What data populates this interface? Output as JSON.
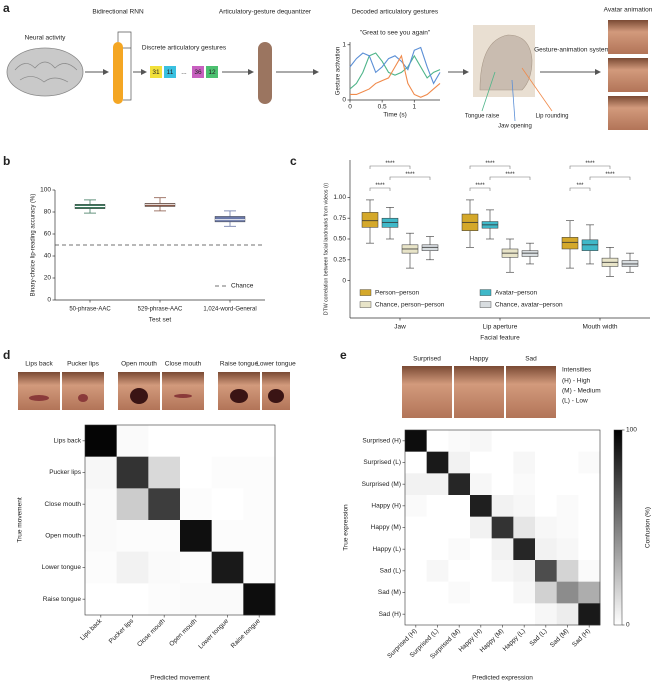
{
  "figure": {
    "panel_letters": [
      "a",
      "b",
      "c",
      "d",
      "e"
    ]
  },
  "panel_a": {
    "neural_activity": "Neural activity",
    "rnn": "Bidirectional RNN",
    "gestures": "Discrete articulatory gestures",
    "tokens": [
      "31",
      "11",
      "...",
      "36",
      "12"
    ],
    "dequantizer": "Articulatory-gesture dequantizer",
    "decoded": "Decoded articulatory gestures",
    "animation_system": "Gesture-animation system",
    "avatar": "Avatar animation"
  },
  "chart_data": [
    {
      "type": "line",
      "title": "\"Great to see you again\"",
      "xlabel": "Time (s)",
      "ylabel": "Gesture activation",
      "x": [
        0,
        0.1,
        0.2,
        0.3,
        0.4,
        0.5,
        0.6,
        0.7,
        0.8,
        0.9,
        1,
        1.1,
        1.2,
        1.3,
        1.4
      ],
      "xlim": [
        0,
        1.4
      ],
      "xticks": [
        0,
        0.5,
        1
      ],
      "ylim": [
        0,
        1.05
      ],
      "yticks": [
        0,
        1
      ],
      "series": [
        {
          "name": "Tongue raise",
          "color": "#4fb58a",
          "values": [
            0.2,
            0.3,
            0.5,
            0.8,
            0.85,
            0.7,
            0.5,
            0.45,
            0.5,
            0.6,
            0.8,
            0.6,
            0.4,
            0.5,
            0.55
          ]
        },
        {
          "name": "Jaw opening",
          "color": "#5b8fd6",
          "values": [
            0.6,
            0.75,
            0.85,
            0.8,
            0.5,
            0.6,
            0.75,
            0.8,
            0.7,
            0.55,
            0.9,
            0.95,
            0.6,
            0.3,
            0.5
          ]
        },
        {
          "name": "Lip rounding",
          "color": "#f08a4b",
          "values": [
            0.1,
            0.1,
            0.15,
            0.2,
            0.3,
            0.35,
            0.4,
            0.6,
            0.8,
            0.3,
            0.1,
            0.05,
            0.1,
            0.2,
            0.3
          ]
        }
      ]
    },
    {
      "type": "box",
      "xlabel": "Test set",
      "ylabel": "Binary-choice lip-reading accuracy (%)",
      "categories": [
        "50-phrase-AAC",
        "529-phrase-AAC",
        "1,024-word-General"
      ],
      "colors": [
        "#3f7a5f",
        "#8b5a4a",
        "#6a78a8"
      ],
      "values": [
        [
          79,
          83,
          85,
          87,
          91
        ],
        [
          81,
          85,
          87,
          88,
          93
        ],
        [
          67,
          71,
          73,
          76,
          81
        ]
      ],
      "ylim": [
        0,
        100
      ],
      "yticks": [
        0,
        20,
        40,
        60,
        80,
        100
      ],
      "chance": {
        "value": 50,
        "label": "Chance"
      }
    },
    {
      "type": "grouped_box",
      "xlabel": "Facial feature",
      "ylabel": "DTW correlation between facial landmarks from videos (r)",
      "categories": [
        "Jaw",
        "Lip aperture",
        "Mouth width"
      ],
      "ylim": [
        -0.45,
        1.45
      ],
      "yticks": [
        0,
        0.25,
        {
          "value": 0.5,
          "label": "0.50"
        },
        0.75,
        {
          "value": 1,
          "label": "1.00"
        }
      ],
      "series": [
        {
          "name": "Person–person",
          "color": "#d4a82a",
          "values": [
            [
              0.45,
              0.64,
              0.72,
              0.82,
              0.97
            ],
            [
              0.4,
              0.6,
              0.7,
              0.8,
              0.97
            ],
            [
              0.15,
              0.38,
              0.46,
              0.52,
              0.72
            ]
          ]
        },
        {
          "name": "Avatar–person",
          "color": "#3fb8c8",
          "values": [
            [
              0.5,
              0.64,
              0.7,
              0.75,
              0.88
            ],
            [
              0.5,
              0.63,
              0.67,
              0.71,
              0.85
            ],
            [
              0.2,
              0.36,
              0.43,
              0.49,
              0.67
            ]
          ]
        },
        {
          "name": "Chance, person–person",
          "color": "#e8e4c8",
          "values": [
            [
              0.15,
              0.33,
              0.38,
              0.43,
              0.57
            ],
            [
              0.1,
              0.28,
              0.33,
              0.38,
              0.5
            ],
            [
              0.05,
              0.17,
              0.22,
              0.27,
              0.4
            ]
          ]
        },
        {
          "name": "Chance, avatar–person",
          "color": "#d8dde0",
          "values": [
            [
              0.25,
              0.36,
              0.4,
              0.43,
              0.53
            ],
            [
              0.2,
              0.29,
              0.33,
              0.36,
              0.45
            ],
            [
              0.1,
              0.17,
              0.2,
              0.24,
              0.33
            ]
          ]
        }
      ],
      "significance": [
        [
          "****",
          "****",
          "****"
        ],
        [
          "****",
          "****",
          "****"
        ],
        [
          "****",
          "****",
          "***"
        ]
      ]
    },
    {
      "type": "heatmap",
      "xlabel": "Predicted movement",
      "ylabel": "True movement",
      "image_labels": [
        "Lips back",
        "Pucker lips",
        "Open mouth",
        "Close mouth",
        "Raise tongue",
        "Lower tongue"
      ],
      "categories": [
        "Lips back",
        "Pucker lips",
        "Close mouth",
        "Open mouth",
        "Lower tongue",
        "Raise tongue"
      ],
      "y_categories": [
        "Lips back",
        "Pucker lips",
        "Close mouth",
        "Open mouth",
        "Lower tongue",
        "Raise tongue"
      ],
      "zlim": [
        0,
        100
      ],
      "values": [
        [
          98,
          2,
          0,
          0,
          0,
          0
        ],
        [
          3,
          80,
          15,
          0,
          1,
          1
        ],
        [
          2,
          20,
          76,
          1,
          0,
          1
        ],
        [
          2,
          1,
          1,
          94,
          1,
          1
        ],
        [
          1,
          5,
          2,
          1,
          90,
          1
        ],
        [
          0,
          0,
          1,
          2,
          2,
          95
        ]
      ]
    },
    {
      "type": "heatmap",
      "xlabel": "Predicted expression",
      "ylabel": "True expression",
      "image_labels": [
        "Surprised",
        "Happy",
        "Sad"
      ],
      "legend_title": "Intensities",
      "legend_entries": [
        "(H) - High",
        "(M) - Medium",
        "(L) - Low"
      ],
      "categories": [
        "Surprised (H)",
        "Surprised (L)",
        "Surprised (M)",
        "Happy (H)",
        "Happy (M)",
        "Happy (L)",
        "Sad (L)",
        "Sad (M)",
        "Sad (H)"
      ],
      "y_categories": [
        "Surprised (H)",
        "Surprised (L)",
        "Surprised (M)",
        "Happy (H)",
        "Happy (M)",
        "Happy (L)",
        "Sad (L)",
        "Sad (M)",
        "Sad (H)"
      ],
      "zlim": [
        0,
        100
      ],
      "colorbar_label": "Confusion (%)",
      "colorbar_ticks": [
        0,
        100
      ],
      "values": [
        [
          95,
          0,
          2,
          3,
          0,
          0,
          0,
          0,
          0
        ],
        [
          0,
          90,
          5,
          0,
          0,
          3,
          0,
          0,
          2
        ],
        [
          5,
          5,
          85,
          3,
          0,
          2,
          0,
          0,
          0
        ],
        [
          2,
          0,
          0,
          88,
          5,
          3,
          0,
          2,
          0
        ],
        [
          0,
          0,
          0,
          5,
          80,
          10,
          3,
          2,
          0
        ],
        [
          0,
          0,
          2,
          0,
          5,
          85,
          5,
          3,
          0
        ],
        [
          0,
          3,
          0,
          0,
          3,
          5,
          70,
          17,
          2
        ],
        [
          0,
          0,
          2,
          0,
          0,
          3,
          18,
          45,
          32
        ],
        [
          0,
          0,
          0,
          0,
          0,
          0,
          3,
          7,
          90
        ]
      ]
    }
  ]
}
